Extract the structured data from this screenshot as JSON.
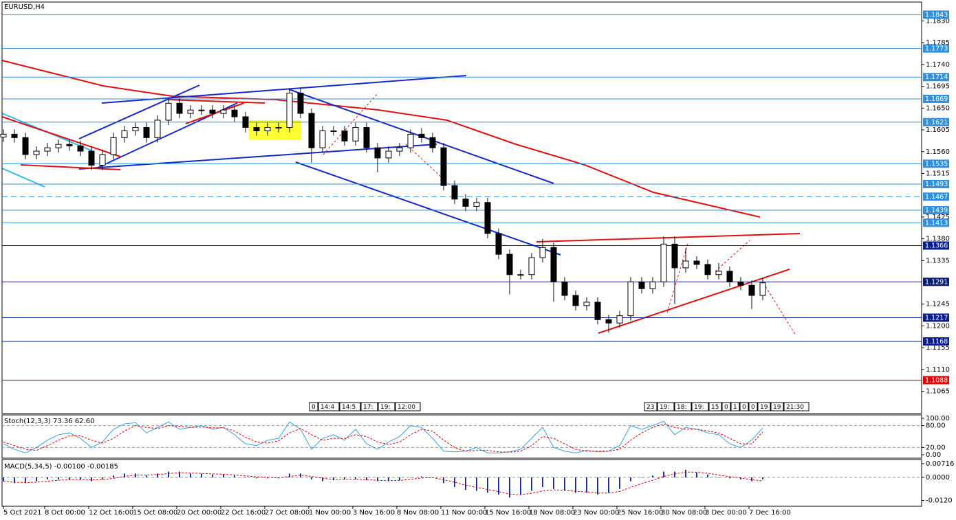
{
  "chart_data": [
    {
      "type": "candlestick",
      "title": "EURUSD,H4",
      "x": [
        0,
        4,
        8,
        12,
        16,
        20,
        24,
        28,
        32,
        36,
        40,
        44,
        48,
        52,
        56,
        60,
        64,
        68,
        72,
        76,
        80,
        84,
        88,
        92,
        96,
        100,
        104,
        108,
        112,
        116,
        120,
        124,
        128,
        132,
        136,
        140,
        144,
        148,
        152,
        156,
        160,
        164,
        168,
        172,
        176,
        180,
        184,
        188,
        192,
        196,
        200,
        204,
        208,
        212,
        216,
        220,
        224,
        228,
        232,
        236,
        240,
        244,
        248,
        252,
        256,
        260,
        264,
        268,
        272,
        276
      ],
      "open": [
        1.159,
        1.1596,
        1.1589,
        1.1554,
        1.1561,
        1.1568,
        1.1575,
        1.1572,
        1.1561,
        1.1532,
        1.1554,
        1.1589,
        1.1603,
        1.161,
        1.1589,
        1.1625,
        1.166,
        1.1639,
        1.1646,
        1.1646,
        1.1639,
        1.1646,
        1.1632,
        1.161,
        1.1603,
        1.161,
        1.161,
        1.1681,
        1.1639,
        1.1568,
        1.1603,
        1.1603,
        1.1582,
        1.161,
        1.1568,
        1.1547,
        1.1561,
        1.1568,
        1.1596,
        1.1589,
        1.1568,
        1.149,
        1.1462,
        1.1447,
        1.1455,
        1.1391,
        1.1348,
        1.1306,
        1.1306,
        1.1341,
        1.1362,
        1.1291,
        1.1263,
        1.1242,
        1.1249,
        1.1213,
        1.1206,
        1.1221,
        1.1291,
        1.1277,
        1.1291,
        1.1369,
        1.132,
        1.1334,
        1.1327,
        1.1306,
        1.1313,
        1.1291,
        1.1284,
        1.1263
      ],
      "high": [
        1.1606,
        1.1606,
        1.1599,
        1.1571,
        1.1578,
        1.1585,
        1.1585,
        1.1582,
        1.1571,
        1.1564,
        1.1599,
        1.1613,
        1.162,
        1.162,
        1.1635,
        1.167,
        1.167,
        1.1656,
        1.1656,
        1.1656,
        1.1656,
        1.1656,
        1.1642,
        1.162,
        1.162,
        1.162,
        1.1691,
        1.1691,
        1.1649,
        1.1613,
        1.1613,
        1.1613,
        1.162,
        1.162,
        1.1578,
        1.1571,
        1.1578,
        1.1606,
        1.1609,
        1.1599,
        1.1578,
        1.15,
        1.1472,
        1.1465,
        1.1465,
        1.1401,
        1.1358,
        1.1316,
        1.1351,
        1.138,
        1.1372,
        1.1301,
        1.1273,
        1.1259,
        1.1259,
        1.1223,
        1.1231,
        1.1301,
        1.1301,
        1.1301,
        1.1385,
        1.1385,
        1.136,
        1.1344,
        1.1337,
        1.133,
        1.1323,
        1.1301,
        1.1294,
        1.1299
      ],
      "low": [
        1.158,
        1.1579,
        1.1544,
        1.1544,
        1.1551,
        1.1558,
        1.1562,
        1.1551,
        1.1522,
        1.1522,
        1.1544,
        1.1579,
        1.1593,
        1.1579,
        1.1579,
        1.1615,
        1.1629,
        1.1629,
        1.1636,
        1.1629,
        1.1629,
        1.1622,
        1.16,
        1.1593,
        1.1593,
        1.16,
        1.16,
        1.1629,
        1.1537,
        1.1558,
        1.1593,
        1.1572,
        1.1572,
        1.1558,
        1.1517,
        1.1537,
        1.1551,
        1.1558,
        1.1579,
        1.1558,
        1.148,
        1.1452,
        1.1437,
        1.1437,
        1.1381,
        1.1338,
        1.1265,
        1.1296,
        1.1296,
        1.1331,
        1.125,
        1.1253,
        1.1232,
        1.1232,
        1.1203,
        1.1186,
        1.1196,
        1.1211,
        1.1267,
        1.1267,
        1.1281,
        1.1245,
        1.131,
        1.1317,
        1.1296,
        1.1296,
        1.1281,
        1.1274,
        1.1235,
        1.1253
      ],
      "close": [
        1.1596,
        1.1589,
        1.1554,
        1.1561,
        1.1568,
        1.1575,
        1.1572,
        1.1561,
        1.1532,
        1.1554,
        1.1589,
        1.1603,
        1.161,
        1.1589,
        1.1625,
        1.166,
        1.1639,
        1.1646,
        1.1646,
        1.1639,
        1.1646,
        1.1632,
        1.161,
        1.1603,
        1.161,
        1.161,
        1.1681,
        1.1639,
        1.1568,
        1.1603,
        1.1603,
        1.1582,
        1.161,
        1.1568,
        1.1547,
        1.1561,
        1.1568,
        1.1596,
        1.1589,
        1.1568,
        1.149,
        1.1462,
        1.1447,
        1.1455,
        1.1391,
        1.1348,
        1.1306,
        1.1306,
        1.1341,
        1.1362,
        1.1291,
        1.1263,
        1.1242,
        1.1249,
        1.1213,
        1.1206,
        1.1221,
        1.1291,
        1.1277,
        1.1291,
        1.1369,
        1.132,
        1.1334,
        1.1327,
        1.1306,
        1.1313,
        1.1291,
        1.1284,
        1.1263,
        1.1289
      ],
      "up_color": "#ffffff",
      "down_color": "#000000",
      "xlim": [
        -0.5,
        333.75
      ],
      "ylim": [
        1.1019,
        1.1869
      ],
      "xticks": [
        {
          "value": 0,
          "label": "5 Oct 2021"
        },
        {
          "value": 15,
          "label": "8 Oct 00:00"
        },
        {
          "value": 31,
          "label": "12 Oct 16:00"
        },
        {
          "value": 47,
          "label": "15 Oct 08:00"
        },
        {
          "value": 63,
          "label": "20 Oct 00:00"
        },
        {
          "value": 79,
          "label": "22 Oct 16:00"
        },
        {
          "value": 95,
          "label": "27 Oct 08:00"
        },
        {
          "value": 111,
          "label": "1 Nov 00:00"
        },
        {
          "value": 127,
          "label": "3 Nov 16:00"
        },
        {
          "value": 143,
          "label": "8 Nov 08:00"
        },
        {
          "value": 159,
          "label": "11 Nov 00:00"
        },
        {
          "value": 175,
          "label": "15 Nov 16:00"
        },
        {
          "value": 191,
          "label": "18 Nov 08:00"
        },
        {
          "value": 207,
          "label": "23 Nov 00:00"
        },
        {
          "value": 223,
          "label": "25 Nov 16:00"
        },
        {
          "value": 239,
          "label": "30 Nov 08:00"
        },
        {
          "value": 255,
          "label": "3 Dec 00:00"
        },
        {
          "value": 271,
          "label": "7 Dec 16:00"
        }
      ],
      "yticks": [
        {
          "value": 1.183,
          "label": "1.1830"
        },
        1.1785,
        {
          "value": 1.174,
          "label": "1.1740"
        },
        1.1695,
        {
          "value": 1.165,
          "label": "1.1650"
        },
        1.1605,
        {
          "value": 1.156,
          "label": "1.1560"
        },
        1.1515,
        1.1425,
        {
          "value": 1.138,
          "label": "1.1380"
        },
        1.1335,
        1.1245,
        {
          "value": 1.12,
          "label": "1.1200"
        },
        1.1155,
        {
          "value": 1.111,
          "label": "1.1110"
        },
        1.1065
      ],
      "levels": [
        {
          "value": 1.1843,
          "color": "#2f8fe0",
          "style": "solid"
        },
        {
          "value": 1.1773,
          "color": "#2f8fe0",
          "style": "solid"
        },
        {
          "value": 1.1714,
          "color": "#2f8fe0",
          "style": "solid"
        },
        {
          "value": 1.1669,
          "color": "#2f8fe0",
          "style": "solid"
        },
        {
          "value": 1.1621,
          "color": "#2f8fe0",
          "style": "solid"
        },
        {
          "value": 1.1535,
          "color": "#2f8fe0",
          "style": "solid"
        },
        {
          "value": 1.1493,
          "color": "#2f8fe0",
          "style": "solid"
        },
        {
          "value": 1.1467,
          "color": "#2f8fe0",
          "style": "dashed"
        },
        {
          "value": 1.1439,
          "color": "#2f8fe0",
          "style": "solid"
        },
        {
          "value": 1.1413,
          "color": "#2f8fe0",
          "style": "solid"
        },
        {
          "value": 1.1366,
          "color": "#0a1f8f",
          "style": "solid"
        },
        {
          "value": 1.1291,
          "color": "#0a1f6f",
          "style": "solid"
        },
        {
          "value": 1.1217,
          "color": "#0a1f8f",
          "style": "solid"
        },
        {
          "value": 1.1168,
          "color": "#0a1f8f",
          "style": "solid"
        },
        {
          "value": 1.1088,
          "color": "#e00000",
          "style": "solid"
        }
      ]
    },
    {
      "type": "line",
      "title": "Stoch(12,3,3) 73.36 62.60",
      "ylim": [
        -9.4,
        109.4
      ],
      "yticks": [
        {
          "value": 100,
          "label": "100.00"
        },
        {
          "value": 80,
          "label": "80.00"
        },
        {
          "value": 20,
          "label": "20.00"
        },
        {
          "value": 0,
          "label": "0.00"
        }
      ],
      "levels": [
        80,
        20
      ],
      "series": [
        {
          "color": "#3aa0e8",
          "style": "solid",
          "values": [
            30,
            15,
            5,
            20,
            40,
            55,
            60,
            45,
            20,
            35,
            70,
            85,
            88,
            60,
            75,
            90,
            70,
            75,
            80,
            70,
            75,
            55,
            30,
            25,
            40,
            45,
            90,
            70,
            15,
            45,
            55,
            40,
            70,
            30,
            15,
            35,
            50,
            80,
            75,
            45,
            10,
            8,
            10,
            20,
            5,
            5,
            8,
            15,
            45,
            75,
            20,
            10,
            5,
            12,
            8,
            10,
            25,
            80,
            70,
            80,
            92,
            55,
            75,
            70,
            60,
            55,
            30,
            20,
            40,
            73.36
          ]
        },
        {
          "color": "#e00000",
          "style": "dashed",
          "values": [
            35,
            25,
            15,
            12,
            25,
            40,
            52,
            52,
            40,
            32,
            45,
            65,
            80,
            75,
            72,
            80,
            78,
            75,
            76,
            74,
            74,
            65,
            48,
            35,
            32,
            38,
            60,
            72,
            55,
            40,
            45,
            45,
            55,
            50,
            35,
            28,
            35,
            55,
            70,
            65,
            40,
            20,
            10,
            12,
            12,
            8,
            7,
            10,
            25,
            50,
            45,
            30,
            15,
            10,
            10,
            10,
            15,
            40,
            60,
            75,
            85,
            75,
            70,
            70,
            65,
            60,
            45,
            30,
            30,
            62.6
          ]
        }
      ]
    },
    {
      "type": "macd",
      "title": "MACD(5,34,5) -0.00100 -0.00185",
      "ylim": [
        -0.01504,
        0.0093
      ],
      "yticks": [
        0.00716,
        {
          "value": 0,
          "label": "0.0000"
        },
        {
          "value": -0.012,
          "label": "-0.0120"
        }
      ],
      "levels": [
        0
      ],
      "series": [
        {
          "color": "#1a2fa0",
          "style": "bar",
          "values": [
            -0.002,
            -0.003,
            -0.003,
            -0.002,
            -0.001,
            -0.001,
            -0.001,
            -0.001,
            -0.002,
            -0.001,
            0.001,
            0.002,
            0.002,
            0.001,
            0.002,
            0.003,
            0.003,
            0.002,
            0.002,
            0.0015,
            0.0015,
            0.001,
            0,
            -0.0005,
            -0.0005,
            -0.0005,
            0.002,
            0.002,
            -0.001,
            -0.002,
            -0.0015,
            -0.001,
            -0.001,
            -0.0015,
            -0.002,
            -0.002,
            -0.0015,
            0,
            0.0005,
            0,
            -0.003,
            -0.005,
            -0.0065,
            -0.007,
            -0.008,
            -0.009,
            -0.0105,
            -0.009,
            -0.007,
            -0.005,
            -0.006,
            -0.007,
            -0.008,
            -0.008,
            -0.009,
            -0.008,
            -0.006,
            -0.002,
            0,
            0.001,
            0.003,
            0.003,
            0.004,
            0.0025,
            0.0015,
            0,
            -0.0005,
            -0.001,
            -0.002,
            -0.001
          ]
        },
        {
          "color": "#e00000",
          "style": "dashed",
          "values": [
            -0.002,
            -0.0025,
            -0.0027,
            -0.0025,
            -0.002,
            -0.0015,
            -0.0012,
            -0.0011,
            -0.0013,
            -0.0012,
            -0.0005,
            0.0005,
            0.0012,
            0.0012,
            0.0015,
            0.002,
            0.0025,
            0.0023,
            0.0021,
            0.0018,
            0.0016,
            0.0013,
            0.0008,
            0.0003,
            0,
            -0.0002,
            0.0005,
            0.0012,
            0.0005,
            -0.0005,
            -0.001,
            -0.001,
            -0.001,
            -0.0012,
            -0.0015,
            -0.0017,
            -0.0016,
            -0.001,
            -0.0003,
            -0.0001,
            -0.0012,
            -0.0025,
            -0.004,
            -0.0052,
            -0.0063,
            -0.0074,
            -0.0087,
            -0.009,
            -0.0083,
            -0.007,
            -0.0065,
            -0.0067,
            -0.0072,
            -0.0076,
            -0.0082,
            -0.0081,
            -0.0073,
            -0.0052,
            -0.0032,
            -0.0015,
            0.0005,
            0.0018,
            0.0028,
            0.0027,
            0.0022,
            0.0012,
            0.0004,
            -0.0003,
            -0.0012,
            -0.00185
          ]
        }
      ]
    }
  ],
  "time_boxes": [
    [
      "0",
      "14:4",
      "14:5",
      "17:",
      "19:",
      "12:00"
    ],
    [
      "23",
      "19:",
      "18:",
      "19:",
      "15",
      "0",
      "1",
      "0",
      "0",
      "19",
      "19",
      "21:30"
    ]
  ]
}
